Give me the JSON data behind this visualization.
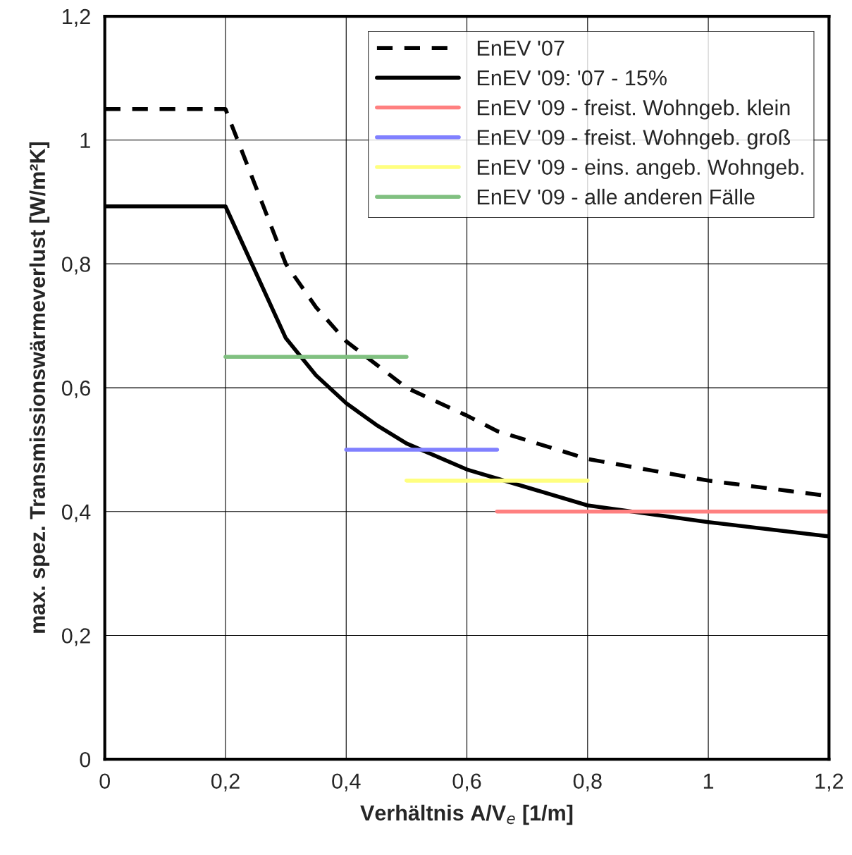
{
  "chart_data": {
    "type": "line",
    "xlabel": "Verhältnis A/V$_{e}$ [1/m]",
    "ylabel": "max. spez. Transmissionswärmeverlust [W/m²K]",
    "xlim": [
      0,
      1.2
    ],
    "ylim": [
      0,
      1.2
    ],
    "xticks": [
      0,
      {
        "value": 0.2,
        "label": "0,2"
      },
      {
        "value": 0.4,
        "label": "0,4"
      },
      {
        "value": 0.6,
        "label": "0,6"
      },
      {
        "value": 0.8,
        "label": "0,8"
      },
      1,
      {
        "value": 1.2,
        "label": "1,2"
      }
    ],
    "yticks": [
      0,
      {
        "value": 0.2,
        "label": "0,2"
      },
      {
        "value": 0.4,
        "label": "0,4"
      },
      {
        "value": 0.6,
        "label": "0,6"
      },
      {
        "value": 0.8,
        "label": "0,8"
      },
      1,
      {
        "value": 1.2,
        "label": "1,2"
      }
    ],
    "grid": true,
    "legend": "top right",
    "marker": "none",
    "series": [
      {
        "name": "EnEV '07",
        "color": "#000000",
        "line_style": "dashed",
        "x": [
          0,
          0.2,
          0.3,
          0.35,
          0.4,
          0.5,
          0.6,
          0.65,
          0.8,
          1.0,
          1.2
        ],
        "values": [
          1.05,
          1.05,
          0.8,
          0.73,
          0.675,
          0.6,
          0.555,
          0.53,
          0.485,
          0.45,
          0.425
        ]
      },
      {
        "name": "EnEV '09: '07 - 15%",
        "color": "#000000",
        "line_style": "solid",
        "x": [
          0,
          0.2,
          0.3,
          0.35,
          0.4,
          0.45,
          0.5,
          0.6,
          0.8,
          1.0,
          1.2
        ],
        "values": [
          0.893,
          0.893,
          0.68,
          0.62,
          0.575,
          0.54,
          0.51,
          0.468,
          0.41,
          0.383,
          0.36
        ]
      },
      {
        "name": "EnEV '09 - freist. Wohngeb. klein",
        "color": "#ff8080",
        "line_style": "solid",
        "x": [
          0.65,
          1.2
        ],
        "values": [
          0.4,
          0.4
        ]
      },
      {
        "name": "EnEV '09 - freist. Wohngeb. groß",
        "color": "#8080ff",
        "line_style": "solid",
        "x": [
          0.4,
          0.65
        ],
        "values": [
          0.5,
          0.5
        ]
      },
      {
        "name": "EnEV '09 - eins. angeb. Wohngeb.",
        "color": "#ffff80",
        "line_style": "solid",
        "x": [
          0.5,
          0.8
        ],
        "values": [
          0.45,
          0.45
        ]
      },
      {
        "name": "EnEV '09 - alle anderen Fälle",
        "color": "#80c080",
        "line_style": "solid",
        "x": [
          0.2,
          0.5
        ],
        "values": [
          0.65,
          0.65
        ]
      }
    ]
  }
}
